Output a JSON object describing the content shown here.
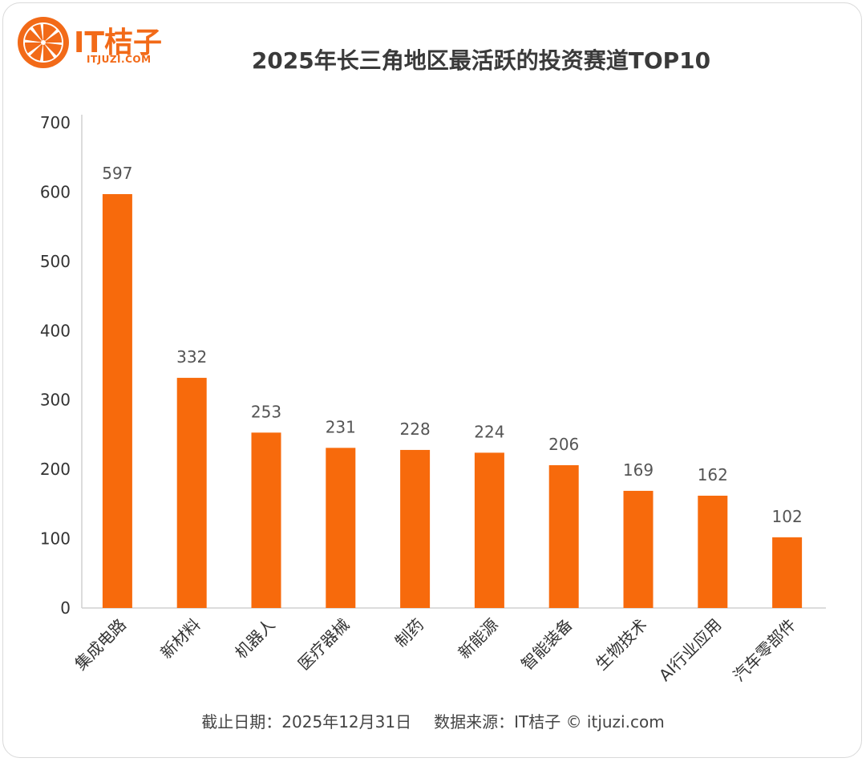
{
  "brand": {
    "name": "IT桔子",
    "url": "ITJUZI.COM",
    "accent_color": "#f26a18",
    "logo_icon": "orange-slice-icon"
  },
  "title": "2025年长三角地区最活跃的投资赛道TOP10",
  "footer": {
    "date_text": "截止日期：2025年12月31日",
    "source_text": "数据来源：IT桔子 © itjuzi.com"
  },
  "chart_data": {
    "type": "bar",
    "title": "2025年长三角地区最活跃的投资赛道TOP10",
    "categories": [
      "集成电路",
      "新材料",
      "机器人",
      "医疗器械",
      "制药",
      "新能源",
      "智能装备",
      "生物技术",
      "AI行业应用",
      "汽车零部件"
    ],
    "values": [
      597,
      332,
      253,
      231,
      228,
      224,
      206,
      169,
      162,
      102
    ],
    "ylim": [
      0,
      700
    ],
    "yticks": [
      0,
      100,
      200,
      300,
      400,
      500,
      600,
      700
    ],
    "xlabel": "",
    "ylabel": "",
    "grid": false,
    "data_labels": true,
    "bar_color": "#f76a0c",
    "axis_color": "#d0d0d0",
    "label_color": "#555555"
  }
}
